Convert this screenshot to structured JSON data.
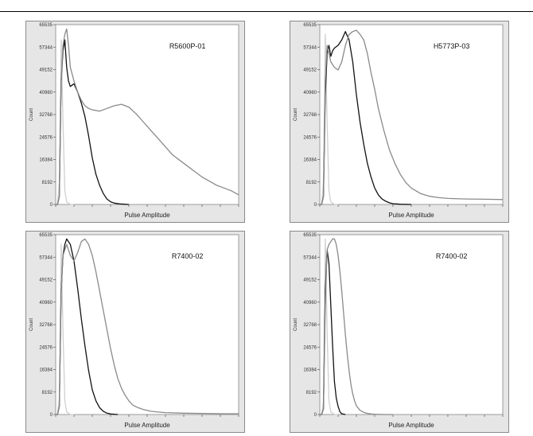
{
  "chart_data": [
    {
      "type": "line",
      "title": "R5600P-01",
      "xlabel": "Pulse Amplitude",
      "ylabel": "Count",
      "yticks": [
        "65535",
        "57344",
        "49152",
        "40960",
        "32768",
        "24576",
        "16384",
        "8192",
        "0"
      ],
      "ylim": [
        0,
        65535
      ],
      "xlim": [
        0,
        100
      ],
      "series": [
        {
          "color": "#cfcfcf",
          "x": [
            0,
            1,
            2,
            3,
            4,
            5,
            6,
            8,
            10
          ],
          "y": [
            0,
            0,
            8000,
            60000,
            30000,
            5000,
            1000,
            0,
            0
          ]
        },
        {
          "color": "#111111",
          "x": [
            0,
            1,
            2,
            3,
            4,
            5,
            6,
            7,
            8,
            10,
            12,
            14,
            16,
            18,
            20,
            22,
            24,
            26,
            28,
            30,
            32,
            35,
            40
          ],
          "y": [
            0,
            0,
            3000,
            45000,
            56000,
            60000,
            50000,
            45000,
            43000,
            44000,
            41000,
            37000,
            32000,
            25000,
            17000,
            11000,
            7000,
            4000,
            2000,
            1000,
            500,
            200,
            0
          ]
        },
        {
          "color": "#8a8a8a",
          "x": [
            0,
            1,
            2,
            3,
            4,
            5,
            6,
            7,
            8,
            10,
            12,
            14,
            16,
            18,
            20,
            24,
            28,
            32,
            36,
            40,
            44,
            48,
            52,
            56,
            60,
            64,
            68,
            72,
            76,
            80,
            84,
            88,
            92,
            96,
            100
          ],
          "y": [
            0,
            0,
            3000,
            45000,
            58000,
            62000,
            64000,
            58000,
            50000,
            45000,
            41000,
            38000,
            36000,
            35000,
            34500,
            34000,
            35000,
            36000,
            36500,
            35500,
            33000,
            30000,
            27000,
            24000,
            21000,
            18000,
            16000,
            14000,
            12000,
            10000,
            8500,
            7000,
            6000,
            5000,
            3500
          ]
        }
      ]
    },
    {
      "type": "line",
      "title": "H5773P-03",
      "xlabel": "Pulse Amplitude",
      "ylabel": "Count",
      "yticks": [
        "65535",
        "57344",
        "49152",
        "40960",
        "32768",
        "24576",
        "16384",
        "8192",
        "0"
      ],
      "ylim": [
        0,
        65535
      ],
      "xlim": [
        0,
        100
      ],
      "series": [
        {
          "color": "#cfcfcf",
          "x": [
            0,
            1,
            2,
            3,
            4,
            5,
            6,
            8,
            10
          ],
          "y": [
            0,
            0,
            8000,
            62000,
            30000,
            5000,
            1000,
            0,
            0
          ]
        },
        {
          "color": "#111111",
          "x": [
            0,
            1,
            2,
            3,
            4,
            5,
            6,
            7,
            8,
            10,
            12,
            14,
            16,
            18,
            20,
            22,
            24,
            26,
            28,
            30,
            32,
            34,
            36,
            38,
            40,
            44,
            50
          ],
          "y": [
            0,
            0,
            3000,
            40000,
            55000,
            58000,
            54000,
            56000,
            57000,
            58000,
            60000,
            63000,
            60000,
            52000,
            40000,
            30000,
            22000,
            15000,
            10000,
            6000,
            3500,
            2000,
            1200,
            600,
            300,
            100,
            0
          ]
        },
        {
          "color": "#8a8a8a",
          "x": [
            0,
            1,
            2,
            3,
            4,
            5,
            6,
            7,
            8,
            10,
            12,
            14,
            16,
            18,
            20,
            22,
            24,
            26,
            28,
            30,
            32,
            35,
            38,
            41,
            44,
            47,
            50,
            55,
            60,
            65,
            70,
            80,
            90,
            100
          ],
          "y": [
            0,
            0,
            3000,
            45000,
            58000,
            55000,
            52000,
            51000,
            50000,
            49000,
            52000,
            58000,
            62000,
            63000,
            63500,
            62000,
            60000,
            55000,
            48000,
            42000,
            35000,
            27000,
            20000,
            15000,
            11000,
            8000,
            6000,
            4000,
            3000,
            2500,
            2200,
            2000,
            1900,
            1800
          ]
        }
      ]
    },
    {
      "type": "line",
      "title": "R7400-02",
      "xlabel": "Pulse Amplitude",
      "ylabel": "Count",
      "yticks": [
        "65535",
        "57344",
        "49152",
        "40960",
        "32768",
        "24576",
        "16384",
        "8192",
        "0"
      ],
      "ylim": [
        0,
        65535
      ],
      "xlim": [
        0,
        100
      ],
      "series": [
        {
          "color": "#cfcfcf",
          "x": [
            0,
            1,
            2,
            3,
            4,
            5,
            6,
            8,
            10
          ],
          "y": [
            0,
            0,
            6000,
            62000,
            30000,
            5000,
            1000,
            0,
            0
          ]
        },
        {
          "color": "#111111",
          "x": [
            0,
            1,
            2,
            3,
            4,
            5,
            6,
            7,
            8,
            10,
            12,
            14,
            16,
            18,
            20,
            22,
            24,
            26,
            28,
            30,
            34
          ],
          "y": [
            0,
            0,
            3000,
            45000,
            58000,
            62000,
            64000,
            63000,
            62000,
            56000,
            46000,
            35000,
            25000,
            16000,
            9000,
            5000,
            2500,
            1200,
            500,
            200,
            0
          ]
        },
        {
          "color": "#8a8a8a",
          "x": [
            0,
            1,
            2,
            3,
            4,
            5,
            6,
            7,
            8,
            10,
            12,
            14,
            16,
            18,
            20,
            22,
            24,
            26,
            28,
            30,
            32,
            34,
            36,
            38,
            40,
            42,
            45,
            48,
            52,
            56,
            60,
            70,
            80,
            90,
            100
          ],
          "y": [
            0,
            0,
            3000,
            45000,
            58000,
            60000,
            62000,
            60000,
            58000,
            56000,
            59000,
            63000,
            64000,
            62000,
            58000,
            52000,
            45000,
            38000,
            31000,
            24000,
            18000,
            13000,
            9500,
            7000,
            5000,
            3500,
            2500,
            1800,
            1200,
            900,
            700,
            500,
            400,
            300,
            300
          ]
        }
      ]
    },
    {
      "type": "line",
      "title": "R7400-02",
      "xlabel": "Pulse Amplitude",
      "ylabel": "Count",
      "yticks": [
        "65535",
        "57344",
        "49152",
        "40960",
        "32768",
        "24576",
        "16384",
        "8192",
        "0"
      ],
      "ylim": [
        0,
        65535
      ],
      "xlim": [
        0,
        100
      ],
      "series": [
        {
          "color": "#cfcfcf",
          "x": [
            0,
            1,
            2,
            3,
            4,
            5,
            6,
            8,
            10
          ],
          "y": [
            0,
            0,
            5000,
            64000,
            30000,
            5000,
            1000,
            0,
            0
          ]
        },
        {
          "color": "#111111",
          "x": [
            0,
            1,
            2,
            3,
            4,
            5,
            6,
            7,
            8,
            9,
            10,
            11,
            12,
            14
          ],
          "y": [
            0,
            0,
            2000,
            45000,
            60000,
            55000,
            40000,
            25000,
            12000,
            6000,
            3000,
            1000,
            300,
            0
          ]
        },
        {
          "color": "#8a8a8a",
          "x": [
            0,
            1,
            2,
            3,
            4,
            5,
            6,
            7,
            8,
            9,
            10,
            11,
            12,
            13,
            14,
            15,
            16,
            17,
            18,
            19,
            20,
            22,
            24,
            26,
            28,
            30,
            35,
            40
          ],
          "y": [
            0,
            0,
            2000,
            40000,
            60000,
            62000,
            63000,
            64000,
            64000,
            62000,
            58000,
            52000,
            45000,
            37000,
            29000,
            22000,
            16000,
            11000,
            7500,
            5000,
            3200,
            1500,
            800,
            400,
            200,
            100,
            0,
            0
          ]
        }
      ]
    }
  ]
}
